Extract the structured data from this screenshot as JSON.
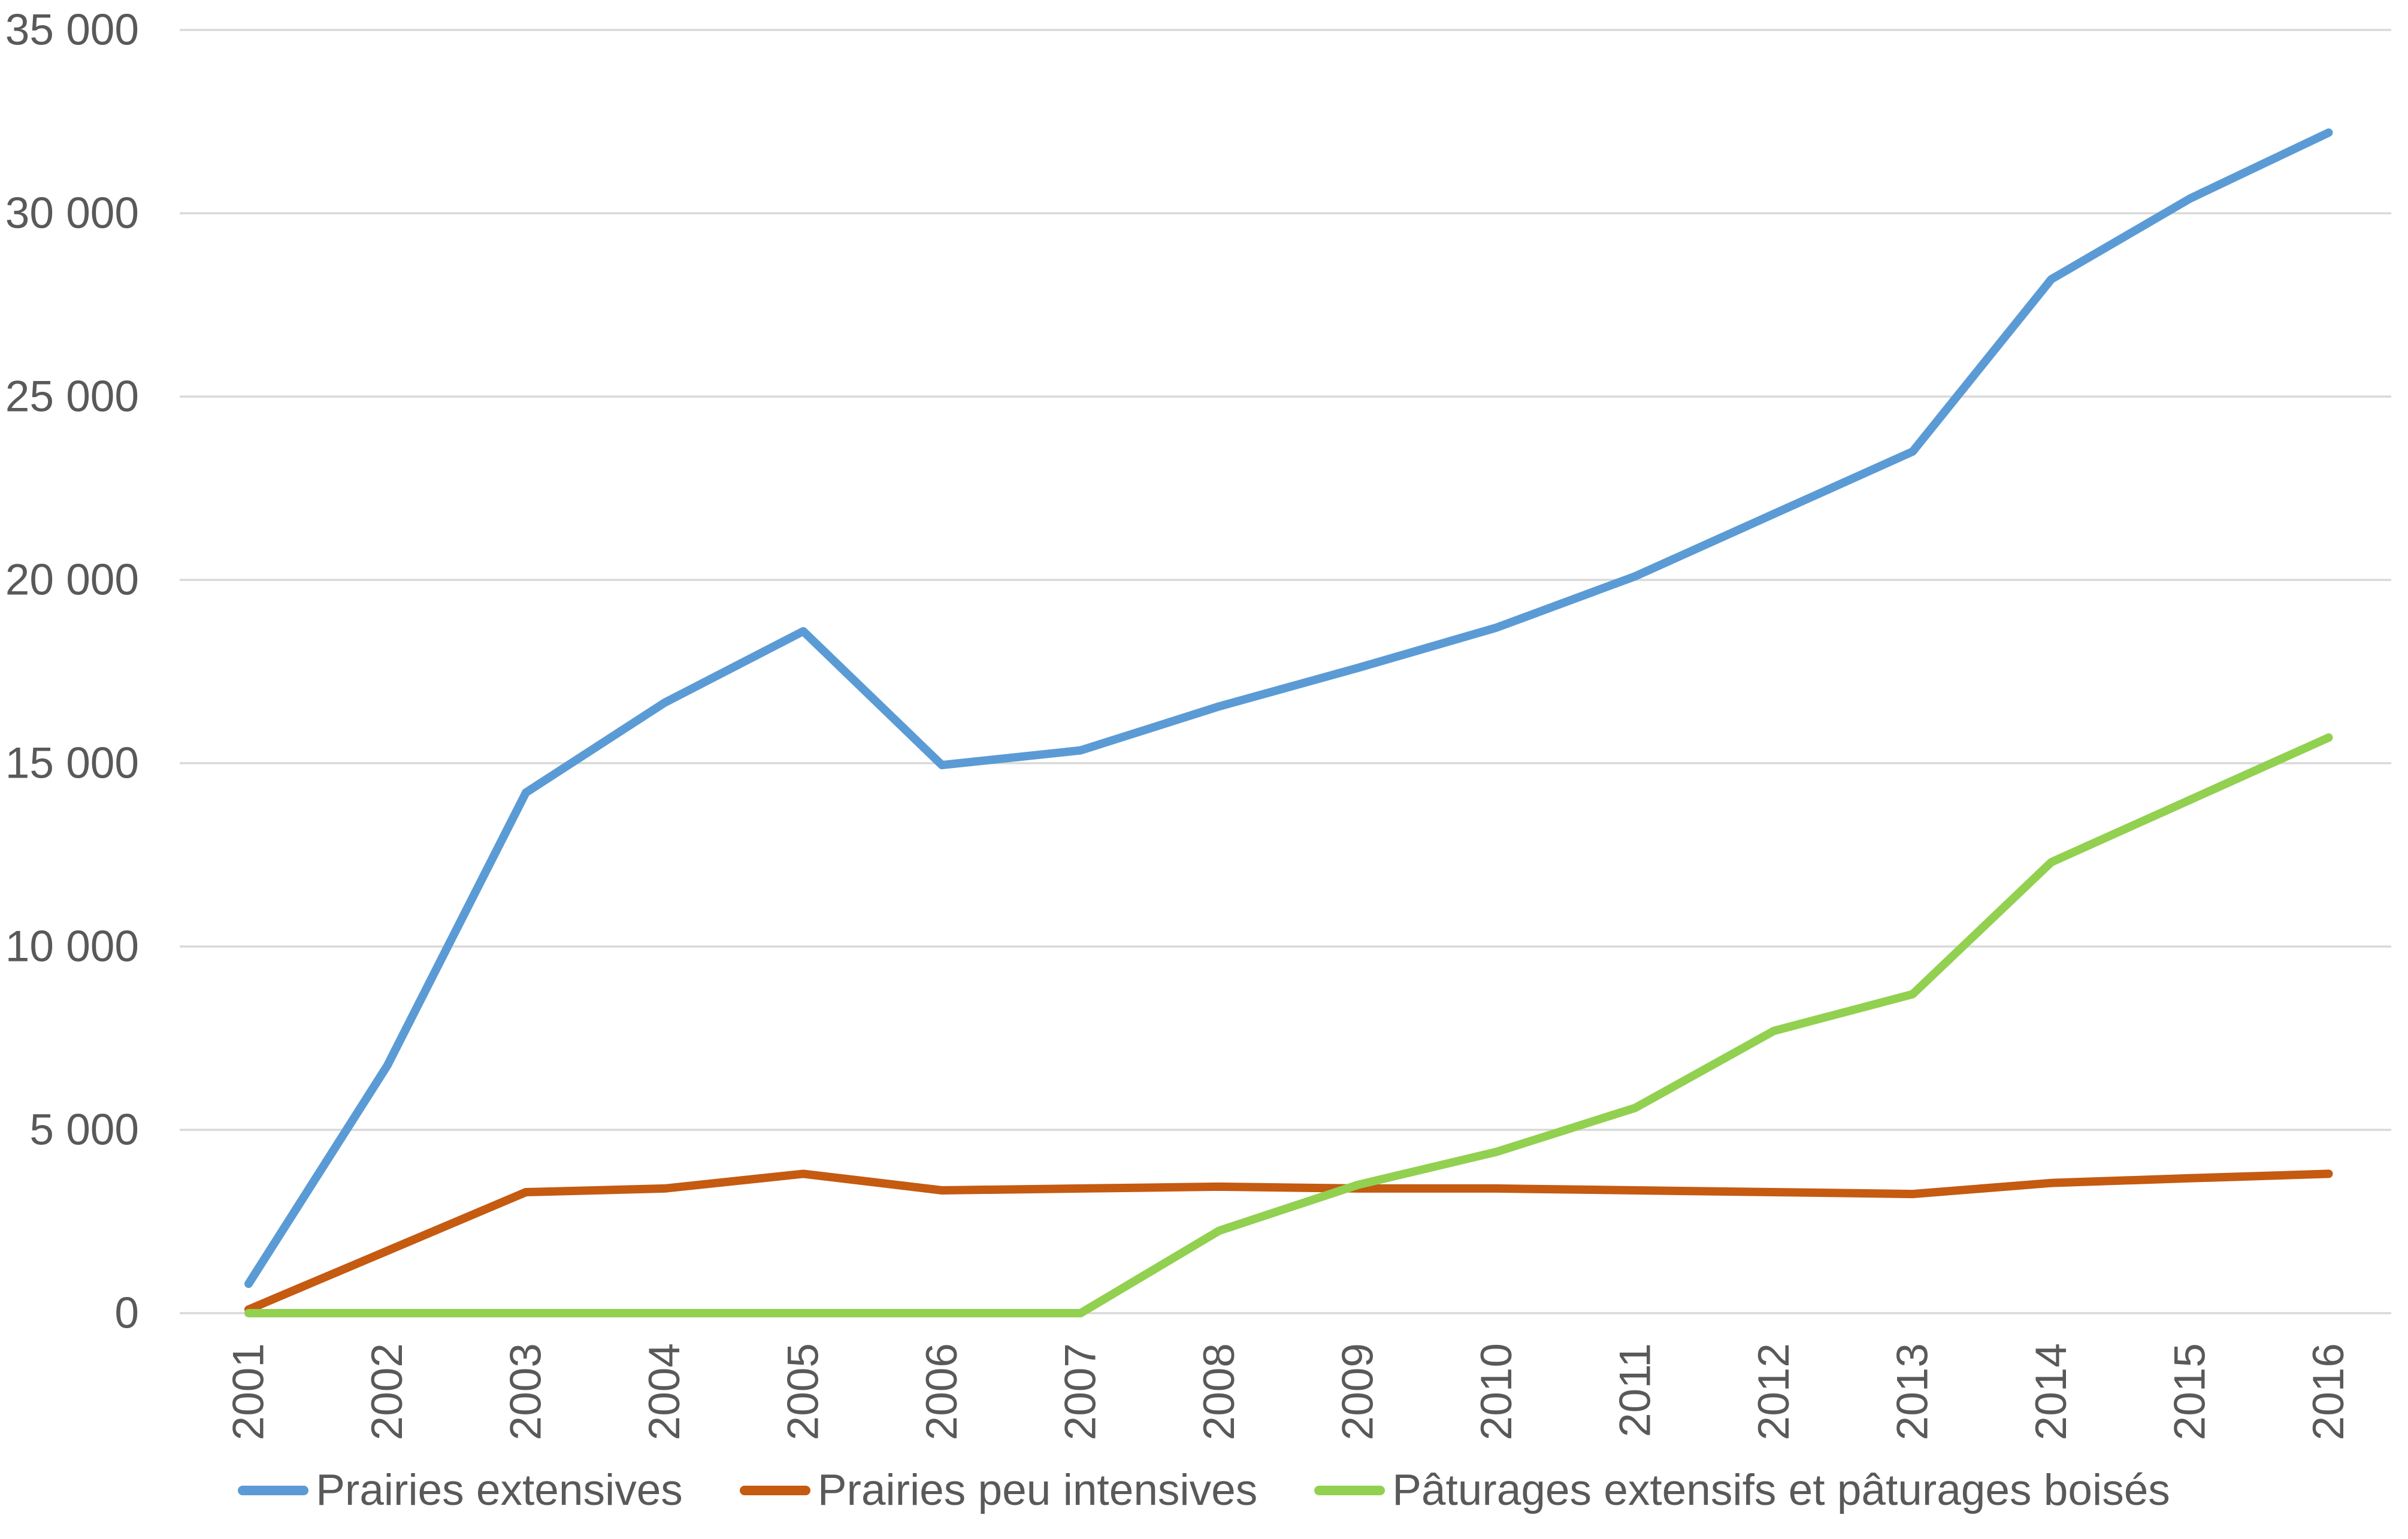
{
  "chart_data": {
    "type": "line",
    "title": "",
    "xlabel": "",
    "ylabel": "",
    "categories": [
      "2001",
      "2002",
      "2003",
      "2004",
      "2005",
      "2006",
      "2007",
      "2008",
      "2009",
      "2010",
      "2011",
      "2012",
      "2013",
      "2014",
      "2015",
      "2016"
    ],
    "series": [
      {
        "name": "Prairies extensives",
        "color": "#5B9BD5",
        "values": [
          800,
          6750,
          14200,
          16650,
          18600,
          14950,
          15350,
          16550,
          17600,
          18700,
          20100,
          21800,
          23500,
          28200,
          30400,
          32200
        ]
      },
      {
        "name": "Prairies peu intensives",
        "color": "#C55A11",
        "values": [
          100,
          1700,
          3300,
          3400,
          3800,
          3350,
          3400,
          3450,
          3400,
          3400,
          3350,
          3300,
          3250,
          3550,
          3680,
          3800
        ]
      },
      {
        "name": "Pâturages extensifs et pâturages boisés",
        "color": "#92D050",
        "values": [
          0,
          0,
          0,
          0,
          0,
          0,
          0,
          2250,
          3500,
          4400,
          5600,
          7700,
          8700,
          12300,
          14000,
          15700
        ]
      }
    ],
    "ylim": [
      0,
      35000
    ],
    "ytick_step": 5000,
    "ytick_labels": [
      "0",
      "5 000",
      "10 000",
      "15 000",
      "20 000",
      "25 000",
      "30 000",
      "35 000"
    ],
    "grid": "horizontal",
    "legend_position": "bottom",
    "background_color": "#FFFFFF",
    "gridline_color": "#D9D9D9",
    "axis_text_color": "#595959"
  }
}
